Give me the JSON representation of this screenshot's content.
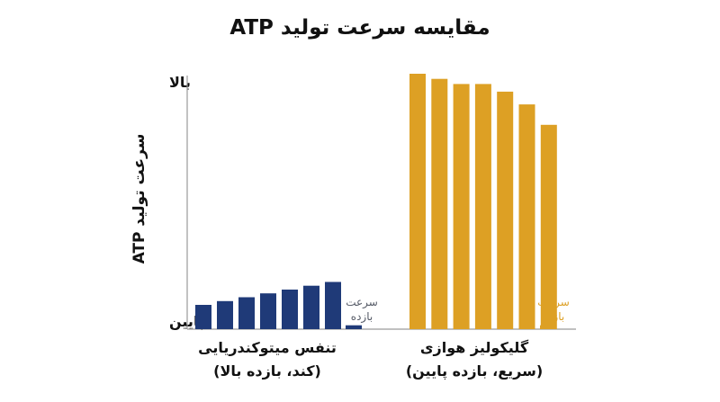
{
  "chart_data": {
    "type": "bar",
    "title": "مقایسه سرعت تولید ATP",
    "ylabel": "سرعت تولید ATP",
    "ylim": [
      0,
      100
    ],
    "y_tick_labels": {
      "low": "پایین",
      "high": "بالا"
    },
    "groups": [
      {
        "label_line1": "تنفس میتوکندریایی",
        "label_line2": "(کند، بازده بالا)",
        "color": "#1f3a78",
        "values": [
          9.5,
          11,
          12.5,
          14,
          15.5,
          17,
          18.5
        ],
        "yield_value": 1.5,
        "yield_label_line1": "سرعت",
        "yield_label_line2": "بازده",
        "yield_label_color": "#555a66"
      },
      {
        "label_line1": "گلیکولیز هوازی",
        "label_line2": "(سریع، بازده پایین)",
        "color": "#dda024",
        "values": [
          100,
          98,
          96,
          96,
          93,
          88,
          80
        ],
        "yield_value": 1.5,
        "yield_label_line1": "سرعت",
        "yield_label_line2": "بازده",
        "yield_label_color": "#dda024"
      }
    ]
  }
}
